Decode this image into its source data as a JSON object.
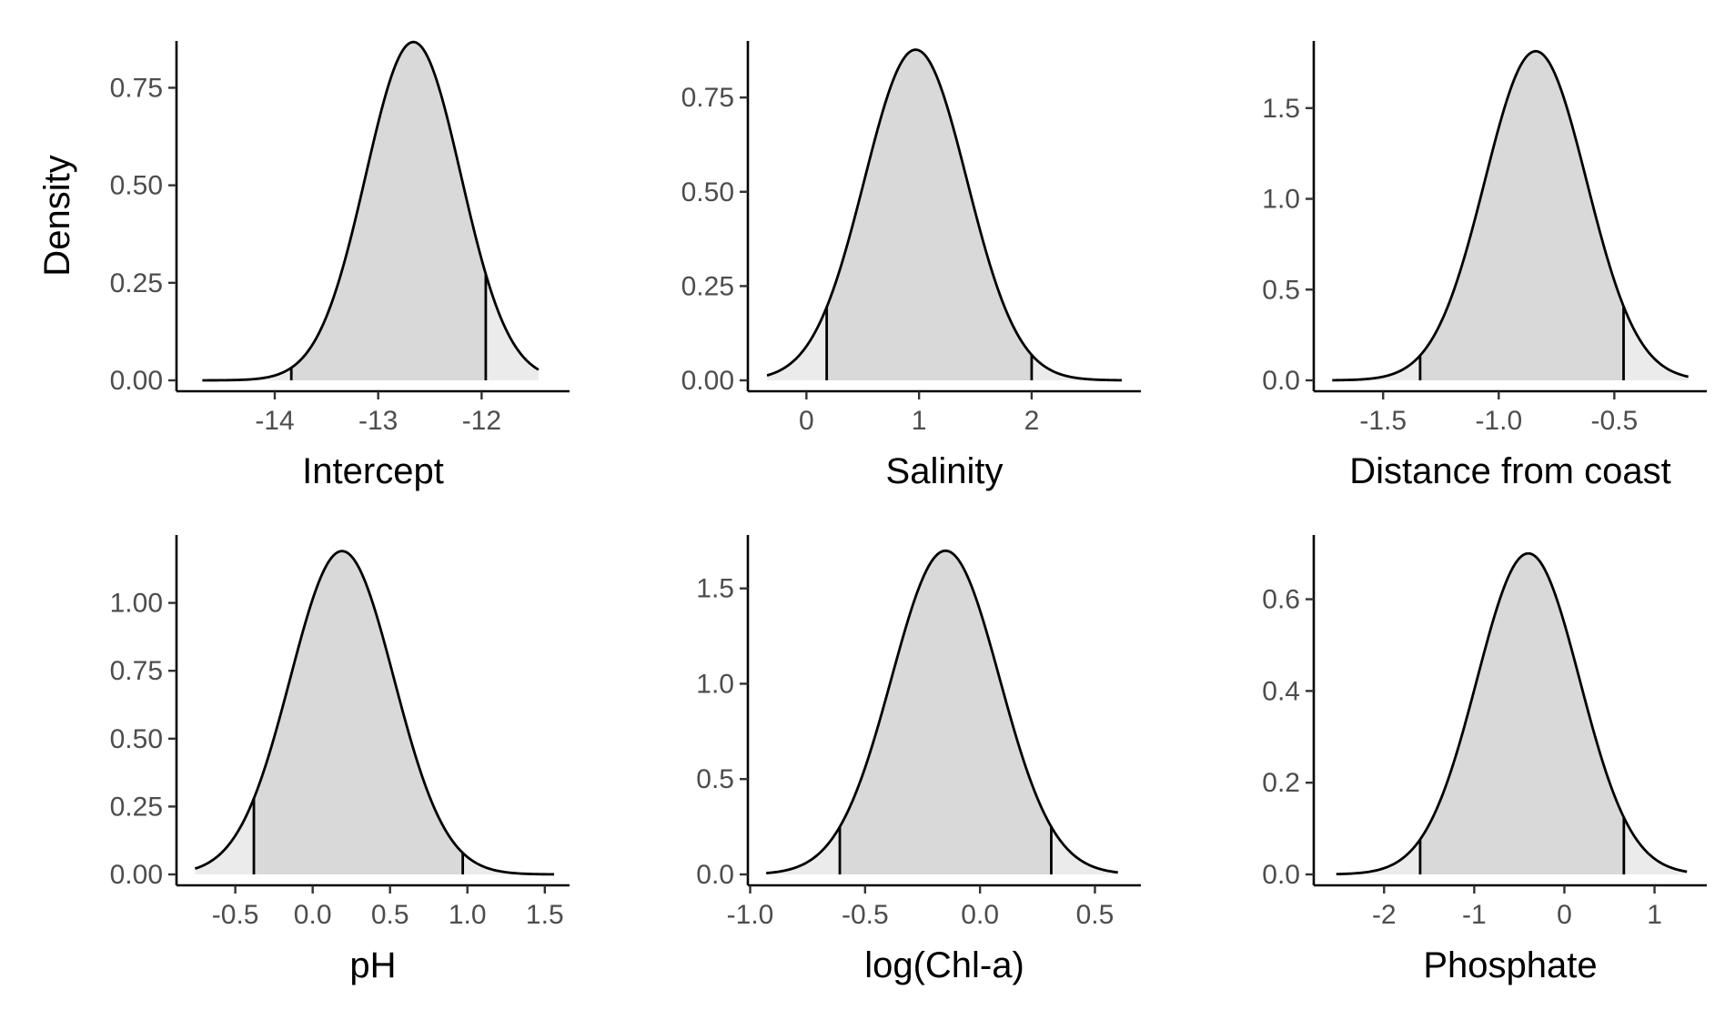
{
  "chart_data": [
    {
      "type": "area",
      "xlabel": "Intercept",
      "ylabel": "Density",
      "density": {
        "mean": -12.66,
        "sd": 0.46,
        "from": -14.7,
        "to": -11.45
      },
      "ci": [
        -13.84,
        -11.96
      ],
      "xlim": [
        -14.95,
        -11.15
      ],
      "ylim": [
        0,
        0.87
      ],
      "xticks": [
        -14,
        -13,
        -12
      ],
      "xticklabels": [
        "-14",
        "-13",
        "-12"
      ],
      "yticks": [
        0,
        0.25,
        0.5,
        0.75
      ],
      "yticklabels": [
        "0.00",
        "0.25",
        "0.50",
        "0.75"
      ],
      "colors": {
        "outer": "#ebebeb",
        "inner": "#d9d9d9",
        "line": "#000000"
      }
    },
    {
      "type": "area",
      "xlabel": "Salinity",
      "ylabel": "",
      "density": {
        "mean": 0.97,
        "sd": 0.455,
        "from": -0.35,
        "to": 2.8
      },
      "ci": [
        0.18,
        2.0
      ],
      "xlim": [
        -0.52,
        2.97
      ],
      "ylim": [
        0,
        0.9
      ],
      "xticks": [
        0,
        1,
        2
      ],
      "xticklabels": [
        "0",
        "1",
        "2"
      ],
      "yticks": [
        0,
        0.25,
        0.5,
        0.75
      ],
      "yticklabels": [
        "0.00",
        "0.25",
        "0.50",
        "0.75"
      ],
      "colors": {
        "outer": "#ebebeb",
        "inner": "#d9d9d9",
        "line": "#000000"
      }
    },
    {
      "type": "area",
      "xlabel": "Distance from coast",
      "ylabel": "",
      "density": {
        "mean": -0.84,
        "sd": 0.22,
        "from": -1.72,
        "to": -0.18
      },
      "ci": [
        -1.34,
        -0.46
      ],
      "xlim": [
        -1.8,
        -0.1
      ],
      "ylim": [
        0,
        1.87
      ],
      "xticks": [
        -1.5,
        -1.0,
        -0.5
      ],
      "xticklabels": [
        "-1.5",
        "-1.0",
        "-0.5"
      ],
      "yticks": [
        0,
        0.5,
        1.0,
        1.5
      ],
      "yticklabels": [
        "0.0",
        "0.5",
        "1.0",
        "1.5"
      ],
      "colors": {
        "outer": "#ebebeb",
        "inner": "#d9d9d9",
        "line": "#000000"
      }
    },
    {
      "type": "area",
      "xlabel": "pH",
      "ylabel": "",
      "density": {
        "mean": 0.19,
        "sd": 0.335,
        "from": -0.76,
        "to": 1.56
      },
      "ci": [
        -0.38,
        0.97
      ],
      "xlim": [
        -0.88,
        1.66
      ],
      "ylim": [
        0,
        1.25
      ],
      "xticks": [
        -0.5,
        0.0,
        0.5,
        1.0,
        1.5
      ],
      "xticklabels": [
        "-0.5",
        "0.0",
        "0.5",
        "1.0",
        "1.5"
      ],
      "yticks": [
        0,
        0.25,
        0.5,
        0.75,
        1.0
      ],
      "yticklabels": [
        "0.00",
        "0.25",
        "0.50",
        "0.75",
        "1.00"
      ],
      "colors": {
        "outer": "#ebebeb",
        "inner": "#d9d9d9",
        "line": "#000000"
      }
    },
    {
      "type": "area",
      "xlabel": "log(Chl-a)",
      "ylabel": "",
      "density": {
        "mean": -0.15,
        "sd": 0.235,
        "from": -0.93,
        "to": 0.6
      },
      "ci": [
        -0.61,
        0.31
      ],
      "xlim": [
        -1.01,
        0.7
      ],
      "ylim": [
        0,
        1.78
      ],
      "xticks": [
        -1.0,
        -0.5,
        0.0,
        0.5
      ],
      "xticklabels": [
        "-1.0",
        "-0.5",
        "0.0",
        "0.5"
      ],
      "yticks": [
        0,
        0.5,
        1.0,
        1.5
      ],
      "yticklabels": [
        "0.0",
        "0.5",
        "1.0",
        "1.5"
      ],
      "colors": {
        "outer": "#ebebeb",
        "inner": "#d9d9d9",
        "line": "#000000"
      }
    },
    {
      "type": "area",
      "xlabel": "Phosphate",
      "ylabel": "",
      "density": {
        "mean": -0.4,
        "sd": 0.57,
        "from": -2.53,
        "to": 1.36
      },
      "ci": [
        -1.6,
        0.66
      ],
      "xlim": [
        -2.78,
        1.58
      ],
      "ylim": [
        0,
        0.74
      ],
      "xticks": [
        -2,
        -1,
        0,
        1
      ],
      "xticklabels": [
        "-2",
        "-1",
        "0",
        "1"
      ],
      "yticks": [
        0,
        0.2,
        0.4,
        0.6
      ],
      "yticklabels": [
        "0.0",
        "0.2",
        "0.4",
        "0.6"
      ],
      "colors": {
        "outer": "#ebebeb",
        "inner": "#d9d9d9",
        "line": "#000000"
      }
    }
  ]
}
